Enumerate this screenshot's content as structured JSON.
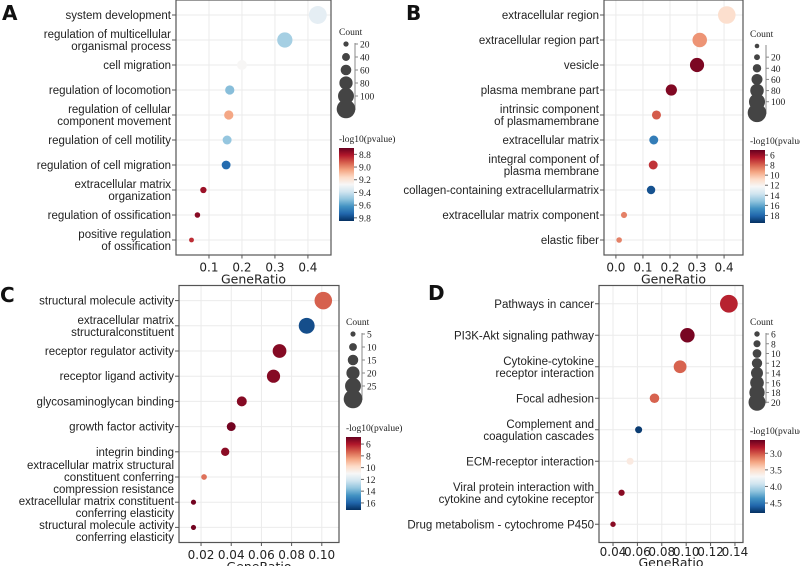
{
  "chart_data": [
    {
      "panel": "A",
      "type": "scatter",
      "xlabel": "GeneRatio",
      "xlim": [
        0,
        0.47
      ],
      "xticks": [
        0.1,
        0.2,
        0.3,
        0.4
      ],
      "xtick_labels": [
        "0.1",
        "0.2",
        "0.3",
        "0.4"
      ],
      "size_title": "Count",
      "size_legend_counts": [
        20,
        40,
        60,
        80,
        100,
        120
      ],
      "size_legend_labels": [
        "20",
        "40",
        "60",
        "80",
        "100"
      ],
      "size_range": [
        15,
        120
      ],
      "color_title": "-log10(pvalue)",
      "color_range": [
        8.7,
        9.85
      ],
      "color_ticks": [
        8.8,
        9.0,
        9.2,
        9.4,
        9.6,
        9.8
      ],
      "color_tick_labels": [
        "8.8",
        "9.0",
        "9.2",
        "9.4",
        "9.6",
        "9.8"
      ],
      "terms": [
        {
          "label": [
            "system development"
          ],
          "x": 0.43,
          "count": 115,
          "p": 9.33
        },
        {
          "label": [
            "regulation of multicellular",
            "organismal process"
          ],
          "x": 0.33,
          "count": 95,
          "p": 9.47
        },
        {
          "label": [
            "cell migration"
          ],
          "x": 0.2,
          "count": 55,
          "p": 9.27
        },
        {
          "label": [
            "regulation of locomotion"
          ],
          "x": 0.163,
          "count": 50,
          "p": 9.52
        },
        {
          "label": [
            "regulation of cellular",
            "component movement"
          ],
          "x": 0.16,
          "count": 50,
          "p": 9.05
        },
        {
          "label": [
            "regulation of cell motility"
          ],
          "x": 0.155,
          "count": 48,
          "p": 9.5
        },
        {
          "label": [
            "regulation of cell migration"
          ],
          "x": 0.152,
          "count": 47,
          "p": 9.72
        },
        {
          "label": [
            "extracellular matrix",
            "organization"
          ],
          "x": 0.083,
          "count": 28,
          "p": 8.78
        },
        {
          "label": [
            "regulation of ossification"
          ],
          "x": 0.065,
          "count": 22,
          "p": 8.75
        },
        {
          "label": [
            "positive regulation",
            "of ossification"
          ],
          "x": 0.047,
          "count": 17,
          "p": 8.85
        }
      ]
    },
    {
      "panel": "B",
      "type": "scatter",
      "xlabel": "GeneRatio",
      "xlim": [
        -0.044,
        0.47
      ],
      "xticks": [
        0.0,
        0.1,
        0.2,
        0.3,
        0.4
      ],
      "xtick_labels": [
        "0.0",
        "0.1",
        "0.2",
        "0.3",
        "0.4"
      ],
      "size_title": "Count",
      "size_legend_counts": [
        10,
        20,
        40,
        60,
        80,
        100,
        120
      ],
      "size_legend_labels": [
        "",
        "20",
        "40",
        "60",
        "80",
        "100"
      ],
      "size_range": [
        10,
        120
      ],
      "color_title": "-log10(pvalue)",
      "color_range": [
        5,
        19.5
      ],
      "color_ticks": [
        6,
        8,
        10,
        12,
        14,
        16,
        18
      ],
      "color_tick_labels": [
        "6",
        "8",
        "10",
        "12",
        "14",
        "16",
        "18"
      ],
      "terms": [
        {
          "label": [
            "extracellular region"
          ],
          "x": 0.41,
          "count": 112,
          "p": 11
        },
        {
          "label": [
            "extracellular region part"
          ],
          "x": 0.31,
          "count": 88,
          "p": 9
        },
        {
          "label": [
            "vesicle"
          ],
          "x": 0.3,
          "count": 85,
          "p": 5.4
        },
        {
          "label": [
            "plasma membrane part"
          ],
          "x": 0.205,
          "count": 62,
          "p": 5.5
        },
        {
          "label": [
            "intrinsic component",
            "of plasmamembrane"
          ],
          "x": 0.15,
          "count": 45,
          "p": 7.8
        },
        {
          "label": [
            "extracellular matrix"
          ],
          "x": 0.14,
          "count": 44,
          "p": 17.3
        },
        {
          "label": [
            "integral component of",
            "plasma membrane"
          ],
          "x": 0.138,
          "count": 44,
          "p": 7
        },
        {
          "label": [
            "collagen-containing extracellularmatrix"
          ],
          "x": 0.13,
          "count": 40,
          "p": 18.6
        },
        {
          "label": [
            "extracellular matrix component"
          ],
          "x": 0.03,
          "count": 22,
          "p": 8.6
        },
        {
          "label": [
            "elastic fiber"
          ],
          "x": 0.012,
          "count": 18,
          "p": 8.6
        }
      ]
    },
    {
      "panel": "C",
      "type": "scatter",
      "xlabel": "GeneRatio",
      "xlim": [
        0.0054,
        0.1114
      ],
      "xticks": [
        0.02,
        0.04,
        0.06,
        0.08,
        0.1
      ],
      "xtick_labels": [
        "0.02",
        "0.04",
        "0.06",
        "0.08",
        "0.10"
      ],
      "size_title": "Count",
      "size_legend_counts": [
        5,
        10,
        15,
        20,
        25,
        30
      ],
      "size_legend_labels": [
        "5",
        "10",
        "15",
        "20",
        "25"
      ],
      "size_range": [
        4,
        30
      ],
      "color_title": "-log10(pvalue)",
      "color_range": [
        4.8,
        17.2
      ],
      "color_ticks": [
        6,
        8,
        10,
        12,
        14,
        16
      ],
      "color_tick_labels": [
        "6",
        "8",
        "10",
        "12",
        "14",
        "16"
      ],
      "terms": [
        {
          "label": [
            "structural molecule activity"
          ],
          "x": 0.101,
          "count": 28,
          "p": 7.3
        },
        {
          "label": [
            "extracellular matrix",
            "structuralconstituent"
          ],
          "x": 0.09,
          "count": 25,
          "p": 16.5
        },
        {
          "label": [
            "receptor regulator activity"
          ],
          "x": 0.072,
          "count": 21,
          "p": 5.3
        },
        {
          "label": [
            "receptor ligand activity"
          ],
          "x": 0.068,
          "count": 20,
          "p": 5.3
        },
        {
          "label": [
            "glycosaminoglycan binding"
          ],
          "x": 0.047,
          "count": 14,
          "p": 5.3
        },
        {
          "label": [
            "growth factor activity"
          ],
          "x": 0.04,
          "count": 12,
          "p": 5.0
        },
        {
          "label": [
            "integrin binding"
          ],
          "x": 0.036,
          "count": 11,
          "p": 5.4
        },
        {
          "label": [
            "extracellular matrix structural",
            "constituent conferring",
            "compression resistance"
          ],
          "x": 0.022,
          "count": 6,
          "p": 7.6
        },
        {
          "label": [
            "extracellular matrix constituent",
            "conferring elasticity"
          ],
          "x": 0.015,
          "count": 5,
          "p": 5.0
        },
        {
          "label": [
            "structural molecule activity",
            "conferring elasticity"
          ],
          "x": 0.015,
          "count": 5,
          "p": 5.0
        }
      ]
    },
    {
      "panel": "D",
      "type": "scatter",
      "xlabel": "GeneRatio",
      "xlim": [
        0.0285,
        0.1466
      ],
      "xticks": [
        0.04,
        0.06,
        0.08,
        0.1,
        0.12,
        0.14
      ],
      "xtick_labels": [
        "0.04",
        "0.06",
        "0.08",
        "0.10",
        "0.12",
        "0.14"
      ],
      "size_title": "Count",
      "size_legend_counts": [
        6,
        8,
        10,
        12,
        14,
        16,
        18,
        20
      ],
      "size_legend_labels": [
        "6",
        "8",
        "10",
        "12",
        "14",
        "16",
        "18",
        "20"
      ],
      "size_range": [
        5,
        22
      ],
      "color_title": "-log10(pvalue)",
      "color_range": [
        2.6,
        4.8
      ],
      "color_ticks": [
        3.0,
        3.5,
        4.0,
        4.5
      ],
      "color_tick_labels": [
        "3.0",
        "3.5",
        "4.0",
        "4.5"
      ],
      "terms": [
        {
          "label": [
            "Pathways in cancer"
          ],
          "x": 0.135,
          "count": 21,
          "p": 2.85
        },
        {
          "label": [
            "PI3K-Akt signaling pathway"
          ],
          "x": 0.101,
          "count": 17,
          "p": 2.65
        },
        {
          "label": [
            "Cytokine-cytokine",
            "receptor interaction"
          ],
          "x": 0.095,
          "count": 15,
          "p": 3.05
        },
        {
          "label": [
            "Focal adhesion"
          ],
          "x": 0.074,
          "count": 11,
          "p": 3.05
        },
        {
          "label": [
            "Complement and",
            "coagulation cascades"
          ],
          "x": 0.061,
          "count": 8,
          "p": 4.75
        },
        {
          "label": [
            "ECM-receptor interaction"
          ],
          "x": 0.054,
          "count": 8,
          "p": 3.6
        },
        {
          "label": [
            "Viral protein interaction with",
            "cytokine and cytokine receptor"
          ],
          "x": 0.047,
          "count": 7,
          "p": 2.7
        },
        {
          "label": [
            "Drug metabolism - cytochrome P450"
          ],
          "x": 0.04,
          "count": 6,
          "p": 2.7
        }
      ]
    }
  ]
}
